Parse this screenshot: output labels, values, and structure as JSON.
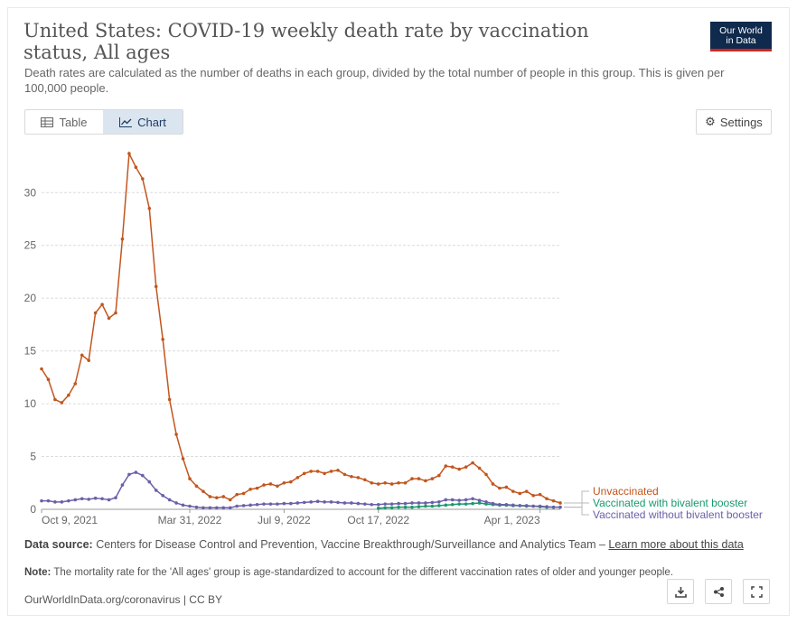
{
  "header": {
    "title": "United States: COVID-19 weekly death rate by vaccination status, All ages",
    "subtitle": "Death rates are calculated as the number of deaths in each group, divided by the total number of people in this group. This is given per 100,000 people.",
    "logo_line1": "Our World",
    "logo_line2": "in Data"
  },
  "tabs": [
    {
      "label": "Table",
      "icon": "table-icon",
      "active": false
    },
    {
      "label": "Chart",
      "icon": "line-chart-icon",
      "active": true
    }
  ],
  "settings_label": "Settings",
  "chart_data": {
    "type": "line",
    "title": "United States: COVID-19 weekly death rate by vaccination status, All ages",
    "ylim": [
      0,
      33.7
    ],
    "y_ticks": [
      0,
      5,
      10,
      15,
      20,
      25,
      30
    ],
    "x_tick_labels": [
      "Oct 9, 2021",
      "Mar 31, 2022",
      "Jul 9, 2022",
      "Oct 17, 2022",
      "Apr 1, 2023"
    ],
    "x_tick_index": [
      0,
      22,
      36,
      50,
      74
    ],
    "grid": "horizontal",
    "legend_placement": "right, line-end labels",
    "colors": {
      "Unvaccinated": "#c2561e",
      "Vaccinated with bivalent booster": "#179a6c",
      "Vaccinated without bivalent booster": "#6b5fa9"
    },
    "series": [
      {
        "name": "Unvaccinated",
        "start_index": 0,
        "values": [
          13.3,
          12.3,
          10.4,
          10.1,
          10.8,
          11.9,
          14.6,
          14.1,
          18.6,
          19.4,
          18.1,
          18.6,
          25.6,
          33.7,
          32.4,
          31.3,
          28.5,
          21.1,
          16.1,
          10.4,
          7.1,
          4.8,
          2.9,
          2.2,
          1.7,
          1.2,
          1.1,
          1.2,
          0.9,
          1.4,
          1.5,
          1.9,
          2.0,
          2.3,
          2.4,
          2.2,
          2.5,
          2.6,
          3.0,
          3.4,
          3.6,
          3.6,
          3.4,
          3.6,
          3.7,
          3.3,
          3.1,
          3.0,
          2.8,
          2.5,
          2.4,
          2.5,
          2.4,
          2.5,
          2.5,
          2.9,
          2.9,
          2.7,
          2.9,
          3.2,
          4.1,
          4.0,
          3.8,
          4.0,
          4.4,
          3.9,
          3.3,
          2.4,
          2.0,
          2.1,
          1.7,
          1.5,
          1.7,
          1.3,
          1.4,
          1.0,
          0.8,
          0.6
        ]
      },
      {
        "name": "Vaccinated with bivalent booster",
        "start_index": 50,
        "values": [
          0.1,
          0.15,
          0.15,
          0.2,
          0.2,
          0.2,
          0.25,
          0.3,
          0.3,
          0.35,
          0.4,
          0.45,
          0.5,
          0.5,
          0.55,
          0.6,
          0.5,
          0.45,
          0.4,
          0.4,
          0.35,
          0.35,
          0.3,
          0.3,
          0.25,
          0.2,
          0.2,
          0.2
        ]
      },
      {
        "name": "Vaccinated without bivalent booster",
        "start_index": 0,
        "values": [
          0.8,
          0.8,
          0.7,
          0.7,
          0.8,
          0.9,
          1.0,
          0.95,
          1.05,
          1.0,
          0.9,
          1.1,
          2.3,
          3.3,
          3.5,
          3.2,
          2.6,
          1.8,
          1.3,
          0.9,
          0.6,
          0.4,
          0.3,
          0.2,
          0.15,
          0.15,
          0.15,
          0.15,
          0.15,
          0.3,
          0.35,
          0.4,
          0.45,
          0.5,
          0.5,
          0.5,
          0.55,
          0.55,
          0.6,
          0.65,
          0.7,
          0.75,
          0.7,
          0.7,
          0.65,
          0.6,
          0.6,
          0.55,
          0.5,
          0.45,
          0.45,
          0.5,
          0.5,
          0.55,
          0.55,
          0.6,
          0.6,
          0.6,
          0.65,
          0.7,
          0.9,
          0.9,
          0.85,
          0.9,
          1.0,
          0.85,
          0.7,
          0.55,
          0.45,
          0.45,
          0.4,
          0.35,
          0.35,
          0.3,
          0.3,
          0.25,
          0.2,
          0.2
        ]
      }
    ]
  },
  "footer": {
    "source_label": "Data source:",
    "source_text": " Centers for Disease Control and Prevention, Vaccine Breakthrough/Surveillance and Analytics Team – ",
    "source_link": "Learn more about this data",
    "note_label": "Note:",
    "note_text": " The mortality rate for the 'All ages' group is age-standardized to account for the different vaccination rates of older and younger people.",
    "credit": "OurWorldInData.org/coronavirus | CC BY"
  },
  "actions": [
    {
      "name": "download-icon"
    },
    {
      "name": "share-icon"
    },
    {
      "name": "fullscreen-icon"
    }
  ]
}
